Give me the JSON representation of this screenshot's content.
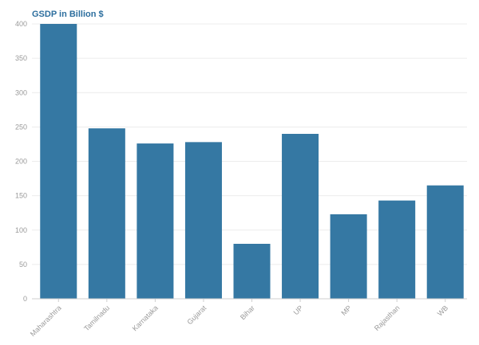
{
  "chart_data": {
    "type": "bar",
    "title": "GSDP in Billion $",
    "xlabel": "",
    "ylabel": "",
    "categories": [
      "Maharashtra",
      "Tamilnadu",
      "Karnataka",
      "Gujarat",
      "Bihar",
      "UP",
      "MP",
      "Rajasthan",
      "WB"
    ],
    "values": [
      400,
      248,
      226,
      228,
      80,
      240,
      123,
      143,
      165
    ],
    "ylim": [
      0,
      400
    ],
    "yticks": [
      0,
      50,
      100,
      150,
      200,
      250,
      300,
      350,
      400
    ],
    "grid": true,
    "legend": "none",
    "colors": {
      "bar": "#3578a3",
      "title": "#2c6e9e",
      "grid": "#ececec",
      "tick_text": "#9a9a9a"
    }
  }
}
